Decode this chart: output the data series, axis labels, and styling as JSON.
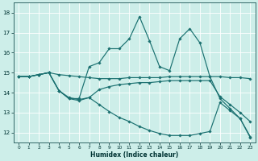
{
  "xlabel": "Humidex (Indice chaleur)",
  "background_color": "#cdeee9",
  "grid_color": "#ffffff",
  "line_color": "#1a7070",
  "x_ticks": [
    0,
    1,
    2,
    3,
    4,
    5,
    6,
    7,
    8,
    9,
    10,
    11,
    12,
    13,
    14,
    15,
    16,
    17,
    18,
    19,
    20,
    21,
    22,
    23
  ],
  "ylim": [
    11.5,
    18.5
  ],
  "xlim": [
    -0.5,
    23.5
  ],
  "y_ticks": [
    12,
    13,
    14,
    15,
    16,
    17,
    18
  ],
  "line_spiky": [
    14.8,
    14.8,
    14.9,
    15.0,
    14.1,
    13.7,
    13.7,
    15.3,
    15.5,
    16.2,
    16.2,
    16.7,
    17.8,
    16.6,
    15.3,
    15.1,
    16.7,
    17.2,
    16.5,
    14.8,
    13.7,
    13.2,
    12.7,
    11.8
  ],
  "line_flat": [
    14.8,
    14.8,
    14.9,
    15.0,
    14.9,
    14.85,
    14.8,
    14.75,
    14.7,
    14.7,
    14.7,
    14.75,
    14.75,
    14.75,
    14.75,
    14.8,
    14.8,
    14.8,
    14.8,
    14.8,
    14.8,
    14.75,
    14.75,
    14.7
  ],
  "line_mid": [
    14.8,
    14.8,
    14.9,
    15.0,
    14.1,
    13.7,
    13.6,
    13.75,
    14.15,
    14.3,
    14.4,
    14.45,
    14.5,
    14.5,
    14.55,
    14.6,
    14.6,
    14.6,
    14.6,
    14.6,
    13.8,
    13.4,
    13.0,
    12.55
  ],
  "line_low": [
    14.8,
    14.8,
    14.9,
    15.0,
    14.1,
    13.75,
    13.65,
    13.75,
    13.4,
    13.05,
    12.75,
    12.55,
    12.3,
    12.1,
    11.95,
    11.85,
    11.85,
    11.85,
    11.95,
    12.05,
    13.5,
    13.1,
    12.7,
    11.75
  ]
}
